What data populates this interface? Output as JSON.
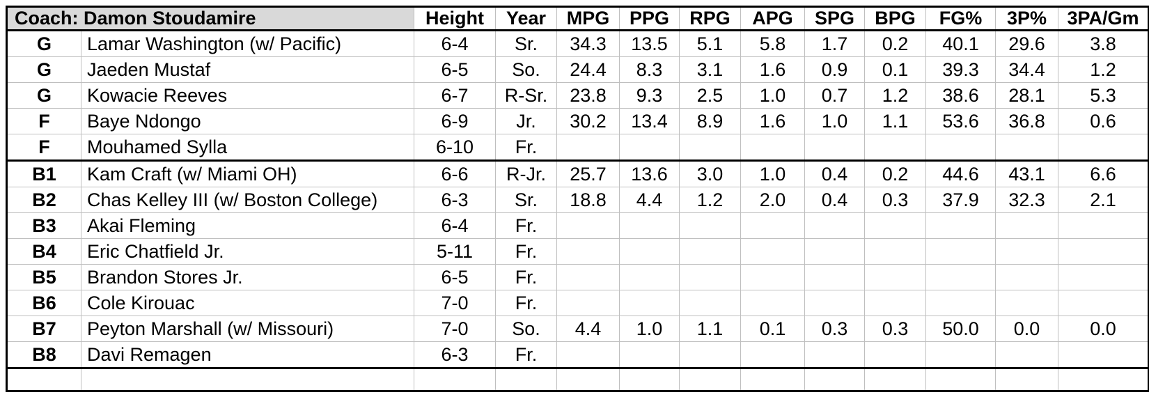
{
  "table": {
    "coach_cell": "Coach: Damon Stoudamire",
    "stat_columns": [
      "Height",
      "Year",
      "MPG",
      "PPG",
      "RPG",
      "APG",
      "SPG",
      "BPG",
      "FG%",
      "3P%",
      "3PA/Gm"
    ],
    "starters": [
      {
        "pos": "G",
        "name": "Lamar Washington (w/ Pacific)",
        "values": [
          "6-4",
          "Sr.",
          "34.3",
          "13.5",
          "5.1",
          "5.8",
          "1.7",
          "0.2",
          "40.1",
          "29.6",
          "3.8"
        ]
      },
      {
        "pos": "G",
        "name": "Jaeden Mustaf",
        "values": [
          "6-5",
          "So.",
          "24.4",
          "8.3",
          "3.1",
          "1.6",
          "0.9",
          "0.1",
          "39.3",
          "34.4",
          "1.2"
        ]
      },
      {
        "pos": "G",
        "name": "Kowacie Reeves",
        "values": [
          "6-7",
          "R-Sr.",
          "23.8",
          "9.3",
          "2.5",
          "1.0",
          "0.7",
          "1.2",
          "38.6",
          "28.1",
          "5.3"
        ]
      },
      {
        "pos": "F",
        "name": "Baye Ndongo",
        "values": [
          "6-9",
          "Jr.",
          "30.2",
          "13.4",
          "8.9",
          "1.6",
          "1.0",
          "1.1",
          "53.6",
          "36.8",
          "0.6"
        ]
      },
      {
        "pos": "F",
        "name": "Mouhamed Sylla",
        "values": [
          "6-10",
          "Fr.",
          "",
          "",
          "",
          "",
          "",
          "",
          "",
          "",
          ""
        ]
      }
    ],
    "bench": [
      {
        "pos": "B1",
        "name": "Kam Craft (w/ Miami OH)",
        "values": [
          "6-6",
          "R-Jr.",
          "25.7",
          "13.6",
          "3.0",
          "1.0",
          "0.4",
          "0.2",
          "44.6",
          "43.1",
          "6.6"
        ]
      },
      {
        "pos": "B2",
        "name": "Chas Kelley III (w/ Boston College)",
        "values": [
          "6-3",
          "Sr.",
          "18.8",
          "4.4",
          "1.2",
          "2.0",
          "0.4",
          "0.3",
          "37.9",
          "32.3",
          "2.1"
        ]
      },
      {
        "pos": "B3",
        "name": "Akai Fleming",
        "values": [
          "6-4",
          "Fr.",
          "",
          "",
          "",
          "",
          "",
          "",
          "",
          "",
          ""
        ]
      },
      {
        "pos": "B4",
        "name": "Eric Chatfield Jr.",
        "values": [
          "5-11",
          "Fr.",
          "",
          "",
          "",
          "",
          "",
          "",
          "",
          "",
          ""
        ]
      },
      {
        "pos": "B5",
        "name": "Brandon Stores Jr.",
        "values": [
          "6-5",
          "Fr.",
          "",
          "",
          "",
          "",
          "",
          "",
          "",
          "",
          ""
        ]
      },
      {
        "pos": "B6",
        "name": "Cole Kirouac",
        "values": [
          "7-0",
          "Fr.",
          "",
          "",
          "",
          "",
          "",
          "",
          "",
          "",
          ""
        ]
      },
      {
        "pos": "B7",
        "name": "Peyton Marshall (w/ Missouri)",
        "values": [
          "7-0",
          "So.",
          "4.4",
          "1.0",
          "1.1",
          "0.1",
          "0.3",
          "0.3",
          "50.0",
          "0.0",
          "0.0"
        ]
      },
      {
        "pos": "B8",
        "name": "Davi Remagen",
        "values": [
          "6-3",
          "Fr.",
          "",
          "",
          "",
          "",
          "",
          "",
          "",
          "",
          ""
        ]
      }
    ]
  },
  "colors": {
    "header_bg": "#d9d9d9",
    "grid_line": "#bfbfbf",
    "border": "#000000"
  }
}
